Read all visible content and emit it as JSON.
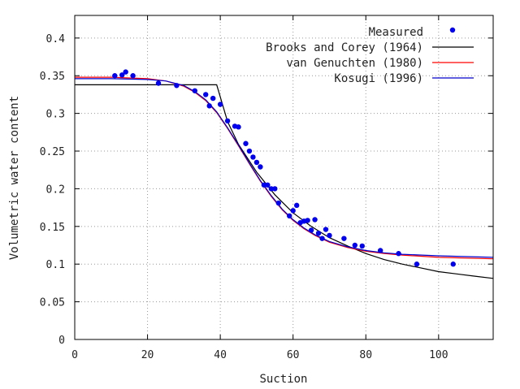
{
  "chart_data": {
    "type": "scatter",
    "xlabel": "Suction",
    "ylabel": "Volumetric water content",
    "xlim": [
      0,
      115
    ],
    "ylim": [
      0,
      0.43
    ],
    "xticks": [
      0,
      20,
      40,
      60,
      80,
      100
    ],
    "yticks": [
      0,
      0.05,
      0.1,
      0.15,
      0.2,
      0.25,
      0.3,
      0.35,
      0.4
    ],
    "xtick_labels": [
      "0",
      "20",
      "40",
      "60",
      "80",
      "100"
    ],
    "ytick_labels": [
      "0",
      "0.05",
      "0.1",
      "0.15",
      "0.2",
      "0.25",
      "0.3",
      "0.35",
      "0.4"
    ],
    "grid": true,
    "legend_position": "top-right",
    "series": [
      {
        "name": "Measured",
        "kind": "points",
        "color": "#0000ee",
        "x": [
          11,
          13,
          14,
          16,
          23,
          28,
          33,
          36,
          37,
          38,
          40,
          42,
          44,
          45,
          47,
          48,
          49,
          50,
          51,
          52,
          53,
          54,
          55,
          56,
          59,
          60,
          61,
          62,
          63,
          64,
          65,
          66,
          67,
          68,
          69,
          70,
          74,
          77,
          79,
          84,
          89,
          94,
          104
        ],
        "y": [
          0.35,
          0.351,
          0.355,
          0.35,
          0.34,
          0.337,
          0.33,
          0.325,
          0.31,
          0.32,
          0.312,
          0.29,
          0.283,
          0.282,
          0.26,
          0.25,
          0.242,
          0.235,
          0.229,
          0.205,
          0.205,
          0.2,
          0.2,
          0.181,
          0.164,
          0.171,
          0.178,
          0.155,
          0.157,
          0.158,
          0.145,
          0.159,
          0.141,
          0.134,
          0.146,
          0.138,
          0.134,
          0.125,
          0.124,
          0.118,
          0.114,
          0.1,
          0.1
        ]
      },
      {
        "name": "Brooks and Corey (1964)",
        "kind": "line",
        "color": "#000000",
        "x": [
          0,
          39,
          42,
          45,
          50,
          55,
          60,
          65,
          70,
          75,
          80,
          85,
          90,
          95,
          100,
          105,
          110,
          115
        ],
        "y": [
          0.338,
          0.338,
          0.289,
          0.259,
          0.222,
          0.192,
          0.168,
          0.15,
          0.135,
          0.124,
          0.114,
          0.106,
          0.1,
          0.095,
          0.09,
          0.087,
          0.084,
          0.081
        ]
      },
      {
        "name": "van Genuchten (1980)",
        "kind": "line",
        "color": "#ff0000",
        "x": [
          0,
          10,
          20,
          25,
          30,
          33,
          36,
          39,
          42,
          45,
          48,
          51,
          54,
          57,
          60,
          63,
          66,
          70,
          75,
          80,
          85,
          90,
          100,
          115
        ],
        "y": [
          0.348,
          0.348,
          0.346,
          0.343,
          0.336,
          0.328,
          0.317,
          0.301,
          0.28,
          0.257,
          0.233,
          0.21,
          0.19,
          0.172,
          0.158,
          0.147,
          0.138,
          0.129,
          0.122,
          0.117,
          0.114,
          0.112,
          0.109,
          0.107
        ]
      },
      {
        "name": "Kosugi (1996)",
        "kind": "line",
        "color": "#0000cc",
        "x": [
          0,
          10,
          20,
          25,
          30,
          33,
          36,
          39,
          42,
          45,
          48,
          51,
          54,
          57,
          60,
          63,
          66,
          70,
          75,
          80,
          85,
          90,
          100,
          115
        ],
        "y": [
          0.346,
          0.346,
          0.345,
          0.343,
          0.337,
          0.329,
          0.318,
          0.302,
          0.281,
          0.258,
          0.234,
          0.211,
          0.191,
          0.173,
          0.159,
          0.148,
          0.139,
          0.13,
          0.123,
          0.118,
          0.115,
          0.113,
          0.111,
          0.109
        ]
      }
    ]
  }
}
